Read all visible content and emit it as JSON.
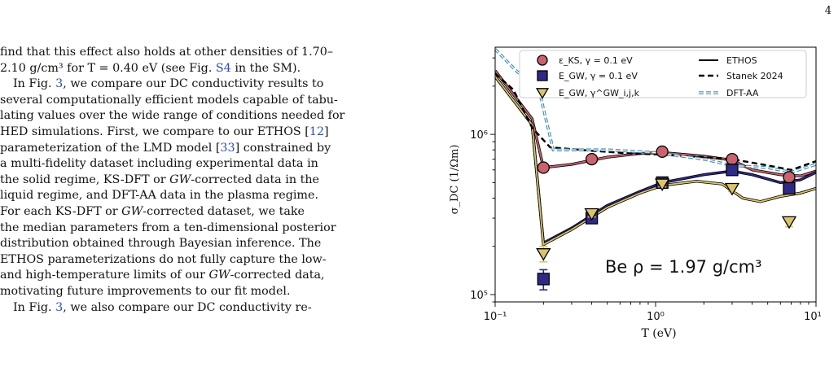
{
  "page": {
    "number": "4"
  },
  "text": {
    "lines": [
      {
        "text": "find that this effect also holds at other densities of 1.70–",
        "indent": false
      },
      {
        "text": "2.10 g/cm³ for T = 0.40 eV (see Fig. S4 in the SM).",
        "indent": false
      },
      {
        "text": "In Fig. 3, we compare our DC conductivity results to",
        "indent": true
      },
      {
        "text": "several computationally efficient models capable of tabu-",
        "indent": false
      },
      {
        "text": "lating values over the wide range of conditions needed for",
        "indent": false
      },
      {
        "text": "HED simulations. First, we compare to our ETHOS [12]",
        "indent": false
      },
      {
        "text": "parameterization of the LMD model [33] constrained by",
        "indent": false
      },
      {
        "text": "a multi-fidelity dataset including experimental data in",
        "indent": false
      },
      {
        "text": "the solid regime, KS-DFT or GW-corrected data in the",
        "indent": false
      },
      {
        "text": "liquid regime, and DFT-AA data in the plasma regime.",
        "indent": false
      },
      {
        "text": "For each KS-DFT or GW-corrected dataset, we take",
        "indent": false
      },
      {
        "text": "the median parameters from a ten-dimensional posterior",
        "indent": false
      },
      {
        "text": "distribution obtained through Bayesian inference. The",
        "indent": false
      },
      {
        "text": "ETHOS parameterizations do not fully capture the low-",
        "indent": false
      },
      {
        "text": "and high-temperature limits of our GW-corrected data,",
        "indent": false
      },
      {
        "text": "motivating future improvements to our fit model.",
        "indent": false
      },
      {
        "text": "In Fig. 3, we also compare our DC conductivity re-",
        "indent": true
      }
    ]
  },
  "chart_data": {
    "type": "scatter",
    "x_scale": "log",
    "y_scale": "log",
    "xlim": [
      0.1,
      10
    ],
    "ylim": [
      90000,
      3500000
    ],
    "xlabel": "T (eV)",
    "ylabel": "σ_DC (1/Ωm)",
    "x_ticks": [
      {
        "value": 0.1,
        "label": "10⁻¹"
      },
      {
        "value": 1,
        "label": "10⁰"
      },
      {
        "value": 10,
        "label": "10¹"
      }
    ],
    "y_ticks": [
      {
        "value": 100000,
        "label": "10⁵"
      },
      {
        "value": 1000000,
        "label": "10⁶"
      }
    ],
    "annotation": "Be ρ = 1.97 g/cm³",
    "legend": {
      "placement": "top-right",
      "entries": [
        {
          "label": "ε_KS, γ = 0.1 eV",
          "kind": "marker-circle",
          "color": "#c9636e"
        },
        {
          "label": "E_GW, γ = 0.1 eV",
          "kind": "marker-square",
          "color": "#2f2a86"
        },
        {
          "label": "E_GW, γ^GW_i,j,k",
          "kind": "marker-triangle",
          "color": "#d9c46a"
        },
        {
          "label": "ETHOS",
          "kind": "line-solid",
          "color": "#000000"
        },
        {
          "label": "Stanek 2024",
          "kind": "line-dashed",
          "color": "#000000"
        },
        {
          "label": "DFT-AA",
          "kind": "line-double-dashed",
          "color": "#4a8fb0"
        }
      ]
    },
    "series": [
      {
        "marker": "circle",
        "color": "#c9636e",
        "x": [
          0.2,
          0.4,
          1.1,
          3.0,
          6.8
        ],
        "y": [
          620000,
          700000,
          780000,
          700000,
          540000
        ],
        "yerr": [
          0,
          0,
          0,
          0,
          0
        ]
      },
      {
        "marker": "square",
        "color": "#2f2a86",
        "x": [
          0.2,
          0.4,
          1.1,
          3.0,
          6.8
        ],
        "y": [
          125000,
          300000,
          500000,
          600000,
          460000
        ],
        "yerr": [
          18000,
          20000,
          25000,
          25000,
          25000
        ]
      },
      {
        "marker": "triangle",
        "color": "#d9c46a",
        "x": [
          0.2,
          0.4,
          1.1,
          3.0,
          6.8
        ],
        "y": [
          180000,
          320000,
          490000,
          460000,
          285000
        ],
        "yerr": [
          20000,
          15000,
          20000,
          20000,
          20000
        ]
      }
    ],
    "curves": [
      {
        "style": "solid",
        "color": "#c9636e",
        "x": [
          0.1,
          0.17,
          0.2,
          0.3,
          0.5,
          0.8,
          1.1,
          2.0,
          3.0,
          4.0,
          6.0,
          8.0,
          10
        ],
        "y": [
          2500000,
          1250000,
          620000,
          650000,
          720000,
          760000,
          770000,
          730000,
          690000,
          600000,
          560000,
          550000,
          590000
        ]
      },
      {
        "style": "solid",
        "color": "#2f2a86",
        "x": [
          0.1,
          0.17,
          0.2,
          0.3,
          0.5,
          0.8,
          1.1,
          2.0,
          3.0,
          4.0,
          6.0,
          8.0,
          10
        ],
        "y": [
          2300000,
          1150000,
          210000,
          260000,
          360000,
          440000,
          500000,
          560000,
          590000,
          560000,
          500000,
          520000,
          580000
        ]
      },
      {
        "style": "solid",
        "color": "#d9c46a",
        "x": [
          0.1,
          0.17,
          0.2,
          0.3,
          0.5,
          0.8,
          1.1,
          1.8,
          2.6,
          3.5,
          4.5,
          6.0,
          8.0,
          10
        ],
        "y": [
          2300000,
          1150000,
          205000,
          255000,
          350000,
          430000,
          480000,
          510000,
          490000,
          400000,
          380000,
          410000,
          430000,
          460000
        ]
      },
      {
        "style": "dashed",
        "color": "#000000",
        "x": [
          0.1,
          0.13,
          0.17,
          0.22,
          0.4,
          0.7,
          1.0,
          2.0,
          3.0,
          5.0,
          7.0,
          10
        ],
        "y": [
          2400000,
          1900000,
          1100000,
          830000,
          790000,
          760000,
          750000,
          720000,
          700000,
          640000,
          600000,
          680000
        ]
      },
      {
        "style": "double-dashed",
        "color": "#4a8fb0",
        "x": [
          0.1,
          0.13,
          0.19,
          0.23,
          0.5,
          1.0,
          2.0,
          3.0,
          5.0,
          7.0,
          10
        ],
        "y": [
          3400000,
          2600000,
          1800000,
          800000,
          800000,
          770000,
          700000,
          640000,
          620000,
          580000,
          650000
        ]
      }
    ]
  }
}
